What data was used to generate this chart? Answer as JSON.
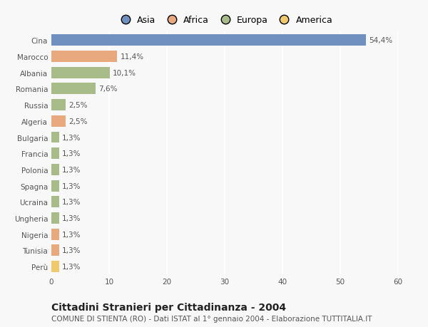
{
  "categories": [
    "Cina",
    "Marocco",
    "Albania",
    "Romania",
    "Russia",
    "Algeria",
    "Bulgaria",
    "Francia",
    "Polonia",
    "Spagna",
    "Ucraina",
    "Ungheria",
    "Nigeria",
    "Tunisia",
    "Perù"
  ],
  "values": [
    54.4,
    11.4,
    10.1,
    7.6,
    2.5,
    2.5,
    1.3,
    1.3,
    1.3,
    1.3,
    1.3,
    1.3,
    1.3,
    1.3,
    1.3
  ],
  "labels": [
    "54,4%",
    "11,4%",
    "10,1%",
    "7,6%",
    "2,5%",
    "2,5%",
    "1,3%",
    "1,3%",
    "1,3%",
    "1,3%",
    "1,3%",
    "1,3%",
    "1,3%",
    "1,3%",
    "1,3%"
  ],
  "colors": [
    "#7090bf",
    "#e8a97e",
    "#a8bc8a",
    "#a8bc8a",
    "#a8bc8a",
    "#e8a97e",
    "#a8bc8a",
    "#a8bc8a",
    "#a8bc8a",
    "#a8bc8a",
    "#a8bc8a",
    "#a8bc8a",
    "#e8a97e",
    "#e8a97e",
    "#f0c96e"
  ],
  "continent_colors": {
    "Asia": "#7090bf",
    "Africa": "#e8a97e",
    "Europa": "#a8bc8a",
    "America": "#f0c96e"
  },
  "legend_order": [
    "Asia",
    "Africa",
    "Europa",
    "America"
  ],
  "xlim": [
    0,
    60
  ],
  "xticks": [
    0,
    10,
    20,
    30,
    40,
    50,
    60
  ],
  "title": "Cittadini Stranieri per Cittadinanza - 2004",
  "subtitle": "COMUNE DI STIENTA (RO) - Dati ISTAT al 1° gennaio 2004 - Elaborazione TUTTITALIA.IT",
  "background_color": "#f8f8f8",
  "grid_color": "#ffffff",
  "bar_height": 0.7,
  "title_fontsize": 10,
  "subtitle_fontsize": 7.5,
  "label_fontsize": 7.5,
  "tick_fontsize": 7.5,
  "legend_fontsize": 9
}
